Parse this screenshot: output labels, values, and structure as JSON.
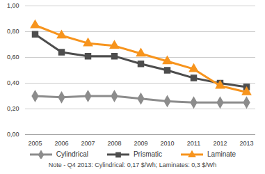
{
  "chart_data": {
    "type": "line",
    "categories": [
      "2005",
      "2006",
      "2007",
      "2008",
      "2009",
      "2010",
      "2011",
      "2012",
      "2013"
    ],
    "series": [
      {
        "name": "Cylindrical",
        "color": "#8c8c8c",
        "marker": "diamond",
        "values": [
          0.3,
          0.29,
          0.3,
          0.3,
          0.28,
          0.26,
          0.25,
          0.25,
          0.25
        ]
      },
      {
        "name": "Prismatic",
        "color": "#4d4d4d",
        "marker": "square",
        "values": [
          0.78,
          0.64,
          0.61,
          0.61,
          0.55,
          0.5,
          0.44,
          0.4,
          0.37
        ]
      },
      {
        "name": "Laminate",
        "color": "#f7941d",
        "marker": "triangle",
        "values": [
          0.85,
          0.77,
          0.71,
          0.69,
          0.63,
          0.57,
          0.51,
          0.38,
          0.33
        ]
      }
    ],
    "ylim": [
      0,
      1
    ],
    "yticks": [
      {
        "value": 0,
        "label": "0,00"
      },
      {
        "value": 0.2,
        "label": "0,20"
      },
      {
        "value": 0.4,
        "label": "0,40"
      },
      {
        "value": 0.6,
        "label": "0,60"
      },
      {
        "value": 0.8,
        "label": "0,80"
      },
      {
        "value": 1,
        "label": "1,00"
      }
    ],
    "grid": true,
    "legend": "bottom",
    "caption": "Note - Q4 2013: Cylindrical: 0,17 $/Wh; Laminates: 0,3 $/Wh"
  }
}
